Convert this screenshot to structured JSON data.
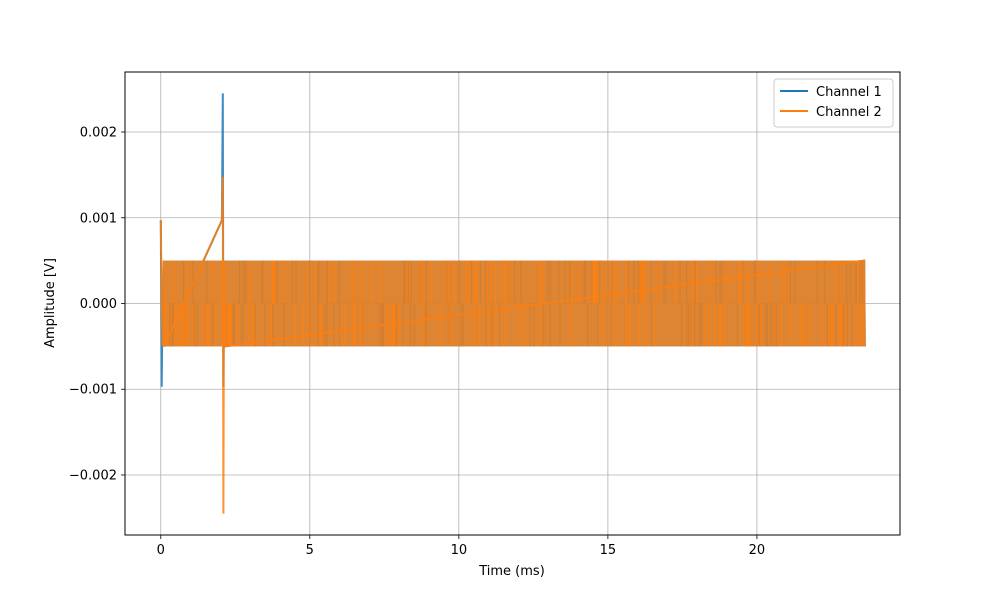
{
  "chart_data": {
    "type": "line",
    "xlabel": "Time (ms)",
    "ylabel": "Amplitude [V]",
    "xlim": [
      -1.2,
      24.8
    ],
    "ylim": [
      -0.0027,
      0.0027
    ],
    "x_ticks": [
      0,
      5,
      10,
      15,
      20
    ],
    "y_ticks": [
      -0.002,
      -0.001,
      0.0,
      0.001,
      0.002
    ],
    "x_tick_labels": [
      "0",
      "5",
      "10",
      "15",
      "20"
    ],
    "y_tick_labels": [
      "−0.002",
      "−0.001",
      "0.000",
      "0.001",
      "0.002"
    ],
    "grid": true,
    "legend_position": "top-right",
    "series": [
      {
        "name": "Channel 1",
        "color": "#1f77b4",
        "points": [
          [
            0.0,
            0.00097
          ],
          [
            0.03,
            -0.00097
          ],
          [
            0.06,
            0.0
          ],
          [
            0.1,
            0.0005
          ],
          [
            0.12,
            -0.0005
          ],
          [
            2.05,
            0.00097
          ],
          [
            2.08,
            0.00245
          ],
          [
            2.1,
            -0.00097
          ],
          [
            2.12,
            0.0005
          ],
          [
            2.15,
            -0.0005
          ],
          [
            23.6,
            0.0005
          ],
          [
            23.62,
            -0.0005
          ]
        ],
        "noise_band": [
          -0.0005,
          0.0005
        ],
        "noise_range": [
          0.1,
          23.6
        ]
      },
      {
        "name": "Channel 2",
        "color": "#ff7f0e",
        "points": [
          [
            0.0,
            0.00097
          ],
          [
            0.03,
            0.0
          ],
          [
            0.06,
            -0.0005
          ],
          [
            0.1,
            0.0005
          ],
          [
            0.12,
            -0.0005
          ],
          [
            2.05,
            0.00097
          ],
          [
            2.08,
            0.00148
          ],
          [
            2.1,
            -0.00245
          ],
          [
            2.12,
            0.0005
          ],
          [
            2.15,
            -0.0005
          ],
          [
            23.6,
            0.0005
          ],
          [
            23.62,
            -0.0005
          ]
        ],
        "noise_band": [
          -0.0005,
          0.0005
        ],
        "noise_range": [
          0.1,
          23.6
        ]
      }
    ]
  }
}
